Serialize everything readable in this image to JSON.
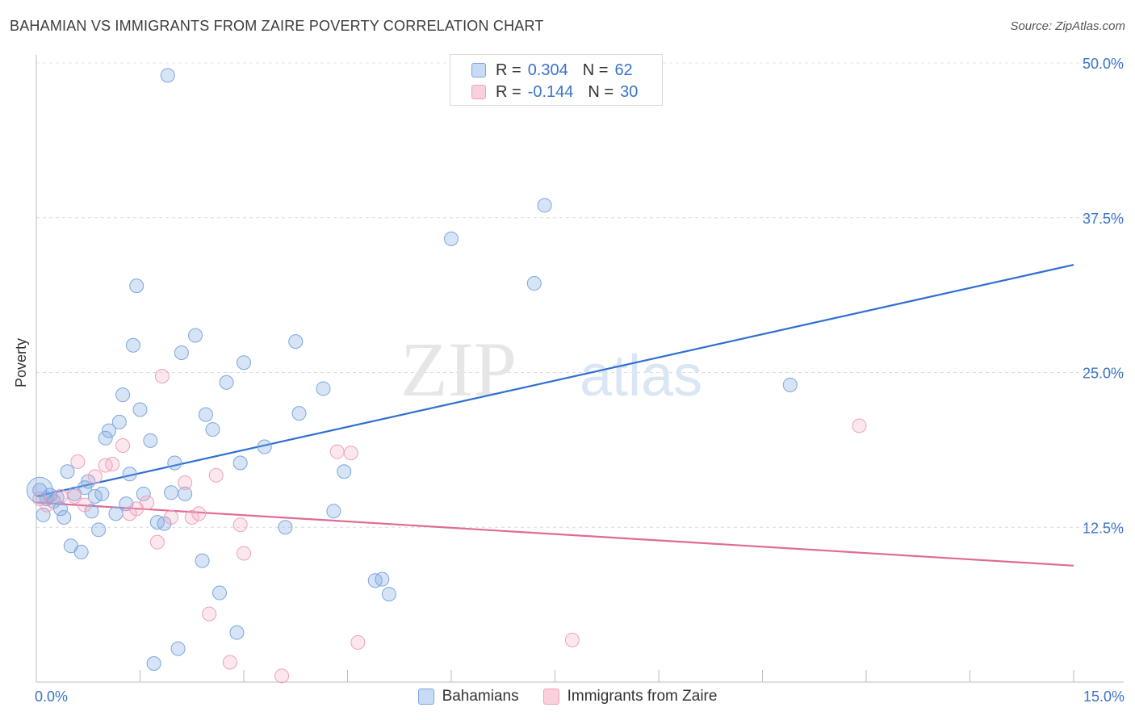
{
  "title": "BAHAMIAN VS IMMIGRANTS FROM ZAIRE POVERTY CORRELATION CHART",
  "source": "Source: ZipAtlas.com",
  "legend": {
    "row1": {
      "r_label": "R =",
      "r_value": "0.304",
      "n_label": "N =",
      "n_value": "62"
    },
    "row2": {
      "r_label": "R =",
      "r_value": "-0.144",
      "n_label": "N =",
      "n_value": "30"
    }
  },
  "bottom_legend": {
    "series1": "Bahamians",
    "series2": "Immigrants from Zaire"
  },
  "watermark": {
    "part1": "ZIP",
    "part2": "atlas"
  },
  "chart_data": {
    "type": "scatter",
    "title": "BAHAMIAN VS IMMIGRANTS FROM ZAIRE POVERTY CORRELATION CHART",
    "xlabel": "",
    "ylabel": "Poverty",
    "xlim": [
      0,
      15
    ],
    "ylim": [
      0,
      50
    ],
    "x_tick_labels": [
      "0.0%",
      "15.0%"
    ],
    "y_ticks": [
      12.5,
      25.0,
      37.5,
      50.0
    ],
    "y_tick_labels": [
      "12.5%",
      "25.0%",
      "37.5%",
      "50.0%"
    ],
    "grid": true,
    "colors": {
      "bahamians": "#7ba7e0",
      "zaire": "#f0a0ba",
      "bahamians_line": "#2f6fd0",
      "zaire_line": "#e06a96",
      "tick_text": "#3a74c9"
    },
    "series": [
      {
        "name": "Bahamians",
        "trend": {
          "x": [
            0,
            15
          ],
          "y": [
            15.0,
            33.7
          ]
        },
        "points": [
          [
            0.05,
            15.5
          ],
          [
            0.1,
            13.5
          ],
          [
            0.15,
            14.8
          ],
          [
            0.2,
            15.1
          ],
          [
            0.25,
            14.6
          ],
          [
            0.3,
            14.9
          ],
          [
            0.35,
            14.0
          ],
          [
            0.4,
            13.3
          ],
          [
            0.45,
            17.0
          ],
          [
            0.5,
            11.0
          ],
          [
            0.55,
            15.2
          ],
          [
            0.65,
            10.5
          ],
          [
            0.7,
            15.7
          ],
          [
            0.75,
            16.2
          ],
          [
            0.8,
            13.8
          ],
          [
            0.85,
            15.0
          ],
          [
            0.9,
            12.3
          ],
          [
            0.95,
            15.2
          ],
          [
            1.0,
            19.7
          ],
          [
            1.05,
            20.3
          ],
          [
            1.15,
            13.6
          ],
          [
            1.2,
            21.0
          ],
          [
            1.25,
            23.2
          ],
          [
            1.3,
            14.4
          ],
          [
            1.35,
            16.8
          ],
          [
            1.4,
            27.2
          ],
          [
            1.45,
            32.0
          ],
          [
            1.5,
            22.0
          ],
          [
            1.55,
            15.2
          ],
          [
            1.65,
            19.5
          ],
          [
            1.7,
            1.5
          ],
          [
            1.75,
            12.9
          ],
          [
            1.85,
            12.8
          ],
          [
            1.9,
            49.0
          ],
          [
            1.95,
            15.3
          ],
          [
            2.0,
            17.7
          ],
          [
            2.05,
            2.7
          ],
          [
            2.1,
            26.6
          ],
          [
            2.15,
            15.2
          ],
          [
            2.3,
            28.0
          ],
          [
            2.4,
            9.8
          ],
          [
            2.45,
            21.6
          ],
          [
            2.55,
            20.4
          ],
          [
            2.65,
            7.2
          ],
          [
            2.75,
            24.2
          ],
          [
            2.9,
            4.0
          ],
          [
            2.95,
            17.7
          ],
          [
            3.0,
            25.8
          ],
          [
            3.3,
            19.0
          ],
          [
            3.6,
            12.5
          ],
          [
            3.75,
            27.5
          ],
          [
            3.8,
            21.7
          ],
          [
            4.15,
            23.7
          ],
          [
            4.3,
            13.8
          ],
          [
            4.45,
            17.0
          ],
          [
            4.9,
            8.2
          ],
          [
            5.0,
            8.3
          ],
          [
            5.1,
            7.1
          ],
          [
            6.0,
            35.8
          ],
          [
            7.2,
            32.2
          ],
          [
            7.35,
            38.5
          ],
          [
            10.9,
            24.0
          ]
        ]
      },
      {
        "name": "Immigrants from Zaire",
        "trend": {
          "x": [
            0,
            15
          ],
          "y": [
            14.5,
            9.4
          ]
        },
        "points": [
          [
            0.05,
            14.8
          ],
          [
            0.15,
            14.3
          ],
          [
            0.35,
            15.0
          ],
          [
            0.55,
            15.0
          ],
          [
            0.6,
            17.8
          ],
          [
            0.7,
            14.3
          ],
          [
            0.85,
            16.6
          ],
          [
            1.0,
            17.5
          ],
          [
            1.1,
            17.6
          ],
          [
            1.25,
            19.1
          ],
          [
            1.35,
            13.6
          ],
          [
            1.45,
            14.0
          ],
          [
            1.6,
            14.5
          ],
          [
            1.75,
            11.3
          ],
          [
            1.82,
            24.7
          ],
          [
            1.95,
            13.3
          ],
          [
            2.15,
            16.1
          ],
          [
            2.25,
            13.3
          ],
          [
            2.35,
            13.6
          ],
          [
            2.5,
            5.5
          ],
          [
            2.6,
            16.7
          ],
          [
            2.8,
            1.6
          ],
          [
            2.95,
            12.7
          ],
          [
            3.0,
            10.4
          ],
          [
            3.55,
            0.5
          ],
          [
            4.35,
            18.6
          ],
          [
            4.55,
            18.5
          ],
          [
            4.65,
            3.2
          ],
          [
            7.75,
            3.4
          ],
          [
            11.9,
            20.7
          ]
        ]
      }
    ]
  }
}
